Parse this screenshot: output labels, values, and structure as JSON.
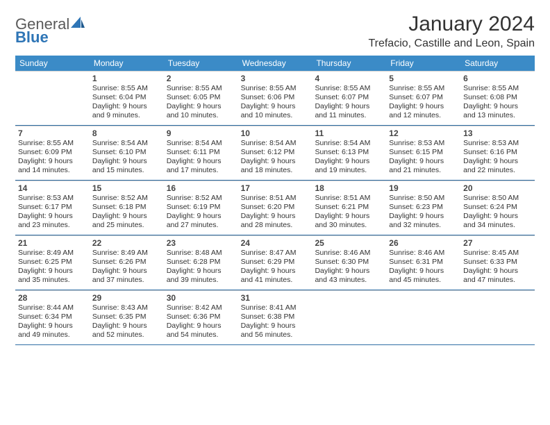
{
  "logo": {
    "textGray": "General",
    "textBlue": "Blue"
  },
  "title": "January 2024",
  "location": "Trefacio, Castille and Leon, Spain",
  "colors": {
    "headerBar": "#3b8bc7",
    "weekDivider": "#2e6da4",
    "logoBlue": "#2e75b6",
    "textGray": "#5a5a5a",
    "bodyText": "#333333"
  },
  "dow": [
    "Sunday",
    "Monday",
    "Tuesday",
    "Wednesday",
    "Thursday",
    "Friday",
    "Saturday"
  ],
  "weeks": [
    [
      null,
      {
        "n": "1",
        "sr": "Sunrise: 8:55 AM",
        "ss": "Sunset: 6:04 PM",
        "d1": "Daylight: 9 hours",
        "d2": "and 9 minutes."
      },
      {
        "n": "2",
        "sr": "Sunrise: 8:55 AM",
        "ss": "Sunset: 6:05 PM",
        "d1": "Daylight: 9 hours",
        "d2": "and 10 minutes."
      },
      {
        "n": "3",
        "sr": "Sunrise: 8:55 AM",
        "ss": "Sunset: 6:06 PM",
        "d1": "Daylight: 9 hours",
        "d2": "and 10 minutes."
      },
      {
        "n": "4",
        "sr": "Sunrise: 8:55 AM",
        "ss": "Sunset: 6:07 PM",
        "d1": "Daylight: 9 hours",
        "d2": "and 11 minutes."
      },
      {
        "n": "5",
        "sr": "Sunrise: 8:55 AM",
        "ss": "Sunset: 6:07 PM",
        "d1": "Daylight: 9 hours",
        "d2": "and 12 minutes."
      },
      {
        "n": "6",
        "sr": "Sunrise: 8:55 AM",
        "ss": "Sunset: 6:08 PM",
        "d1": "Daylight: 9 hours",
        "d2": "and 13 minutes."
      }
    ],
    [
      {
        "n": "7",
        "sr": "Sunrise: 8:55 AM",
        "ss": "Sunset: 6:09 PM",
        "d1": "Daylight: 9 hours",
        "d2": "and 14 minutes."
      },
      {
        "n": "8",
        "sr": "Sunrise: 8:54 AM",
        "ss": "Sunset: 6:10 PM",
        "d1": "Daylight: 9 hours",
        "d2": "and 15 minutes."
      },
      {
        "n": "9",
        "sr": "Sunrise: 8:54 AM",
        "ss": "Sunset: 6:11 PM",
        "d1": "Daylight: 9 hours",
        "d2": "and 17 minutes."
      },
      {
        "n": "10",
        "sr": "Sunrise: 8:54 AM",
        "ss": "Sunset: 6:12 PM",
        "d1": "Daylight: 9 hours",
        "d2": "and 18 minutes."
      },
      {
        "n": "11",
        "sr": "Sunrise: 8:54 AM",
        "ss": "Sunset: 6:13 PM",
        "d1": "Daylight: 9 hours",
        "d2": "and 19 minutes."
      },
      {
        "n": "12",
        "sr": "Sunrise: 8:53 AM",
        "ss": "Sunset: 6:15 PM",
        "d1": "Daylight: 9 hours",
        "d2": "and 21 minutes."
      },
      {
        "n": "13",
        "sr": "Sunrise: 8:53 AM",
        "ss": "Sunset: 6:16 PM",
        "d1": "Daylight: 9 hours",
        "d2": "and 22 minutes."
      }
    ],
    [
      {
        "n": "14",
        "sr": "Sunrise: 8:53 AM",
        "ss": "Sunset: 6:17 PM",
        "d1": "Daylight: 9 hours",
        "d2": "and 23 minutes."
      },
      {
        "n": "15",
        "sr": "Sunrise: 8:52 AM",
        "ss": "Sunset: 6:18 PM",
        "d1": "Daylight: 9 hours",
        "d2": "and 25 minutes."
      },
      {
        "n": "16",
        "sr": "Sunrise: 8:52 AM",
        "ss": "Sunset: 6:19 PM",
        "d1": "Daylight: 9 hours",
        "d2": "and 27 minutes."
      },
      {
        "n": "17",
        "sr": "Sunrise: 8:51 AM",
        "ss": "Sunset: 6:20 PM",
        "d1": "Daylight: 9 hours",
        "d2": "and 28 minutes."
      },
      {
        "n": "18",
        "sr": "Sunrise: 8:51 AM",
        "ss": "Sunset: 6:21 PM",
        "d1": "Daylight: 9 hours",
        "d2": "and 30 minutes."
      },
      {
        "n": "19",
        "sr": "Sunrise: 8:50 AM",
        "ss": "Sunset: 6:23 PM",
        "d1": "Daylight: 9 hours",
        "d2": "and 32 minutes."
      },
      {
        "n": "20",
        "sr": "Sunrise: 8:50 AM",
        "ss": "Sunset: 6:24 PM",
        "d1": "Daylight: 9 hours",
        "d2": "and 34 minutes."
      }
    ],
    [
      {
        "n": "21",
        "sr": "Sunrise: 8:49 AM",
        "ss": "Sunset: 6:25 PM",
        "d1": "Daylight: 9 hours",
        "d2": "and 35 minutes."
      },
      {
        "n": "22",
        "sr": "Sunrise: 8:49 AM",
        "ss": "Sunset: 6:26 PM",
        "d1": "Daylight: 9 hours",
        "d2": "and 37 minutes."
      },
      {
        "n": "23",
        "sr": "Sunrise: 8:48 AM",
        "ss": "Sunset: 6:28 PM",
        "d1": "Daylight: 9 hours",
        "d2": "and 39 minutes."
      },
      {
        "n": "24",
        "sr": "Sunrise: 8:47 AM",
        "ss": "Sunset: 6:29 PM",
        "d1": "Daylight: 9 hours",
        "d2": "and 41 minutes."
      },
      {
        "n": "25",
        "sr": "Sunrise: 8:46 AM",
        "ss": "Sunset: 6:30 PM",
        "d1": "Daylight: 9 hours",
        "d2": "and 43 minutes."
      },
      {
        "n": "26",
        "sr": "Sunrise: 8:46 AM",
        "ss": "Sunset: 6:31 PM",
        "d1": "Daylight: 9 hours",
        "d2": "and 45 minutes."
      },
      {
        "n": "27",
        "sr": "Sunrise: 8:45 AM",
        "ss": "Sunset: 6:33 PM",
        "d1": "Daylight: 9 hours",
        "d2": "and 47 minutes."
      }
    ],
    [
      {
        "n": "28",
        "sr": "Sunrise: 8:44 AM",
        "ss": "Sunset: 6:34 PM",
        "d1": "Daylight: 9 hours",
        "d2": "and 49 minutes."
      },
      {
        "n": "29",
        "sr": "Sunrise: 8:43 AM",
        "ss": "Sunset: 6:35 PM",
        "d1": "Daylight: 9 hours",
        "d2": "and 52 minutes."
      },
      {
        "n": "30",
        "sr": "Sunrise: 8:42 AM",
        "ss": "Sunset: 6:36 PM",
        "d1": "Daylight: 9 hours",
        "d2": "and 54 minutes."
      },
      {
        "n": "31",
        "sr": "Sunrise: 8:41 AM",
        "ss": "Sunset: 6:38 PM",
        "d1": "Daylight: 9 hours",
        "d2": "and 56 minutes."
      },
      null,
      null,
      null
    ]
  ]
}
